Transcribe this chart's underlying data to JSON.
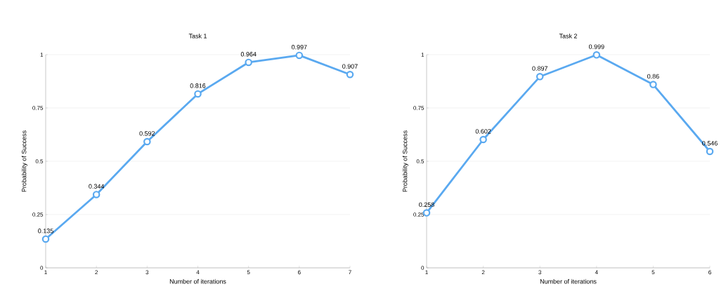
{
  "chart_data": [
    {
      "type": "line",
      "title": "Task 1",
      "xlabel": "Number of iterations",
      "ylabel": "Probability of Success",
      "x": [
        1,
        2,
        3,
        4,
        5,
        6,
        7
      ],
      "xlim": [
        1,
        7
      ],
      "xticks": [
        1,
        2,
        3,
        4,
        5,
        6,
        7
      ],
      "ylim": [
        0,
        1
      ],
      "yticks": [
        0,
        0.25,
        0.5,
        0.75,
        1
      ],
      "grid": "y",
      "marker": "circle",
      "line_style": "solid",
      "data_labels": true,
      "series": [
        {
          "color": "#5aa9f0",
          "values": [
            0.135,
            0.344,
            0.592,
            0.816,
            0.964,
            0.997,
            0.907
          ]
        }
      ]
    },
    {
      "type": "line",
      "title": "Task 2",
      "xlabel": "Number of iterations",
      "ylabel": "Probability of Success",
      "x": [
        1,
        2,
        3,
        4,
        5,
        6
      ],
      "xlim": [
        1,
        6
      ],
      "xticks": [
        1,
        2,
        3,
        4,
        5,
        6
      ],
      "ylim": [
        0,
        1
      ],
      "yticks": [
        0,
        0.25,
        0.5,
        0.75,
        1
      ],
      "grid": "y",
      "marker": "circle",
      "line_style": "solid",
      "data_labels": true,
      "series": [
        {
          "color": "#5aa9f0",
          "values": [
            0.258,
            0.602,
            0.897,
            0.999,
            0.86,
            0.546
          ]
        }
      ]
    }
  ]
}
